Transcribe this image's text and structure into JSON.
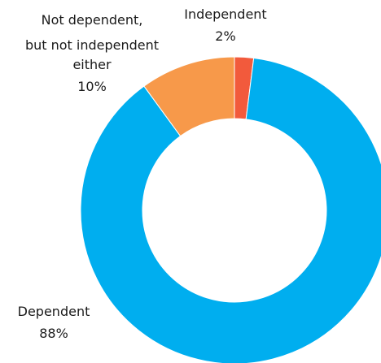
{
  "chart_data": {
    "type": "pie",
    "donut": true,
    "title": "",
    "slices": [
      {
        "label": "Independent",
        "value": 2,
        "display": "2%",
        "color": "#F25A3C"
      },
      {
        "label": "Dependent",
        "value": 88,
        "display": "88%",
        "color": "#00AEEF"
      },
      {
        "label": "Not dependent, but not independent either",
        "value": 10,
        "display": "10%",
        "color": "#F7994A"
      }
    ],
    "labels": {
      "independent": {
        "lines": [
          "Independent"
        ],
        "percent": "2%"
      },
      "dependent": {
        "lines": [
          "Dependent"
        ],
        "percent": "88%"
      },
      "neither": {
        "lines": [
          "Not dependent,",
          "but not independent",
          "either"
        ],
        "percent": "10%"
      }
    }
  }
}
